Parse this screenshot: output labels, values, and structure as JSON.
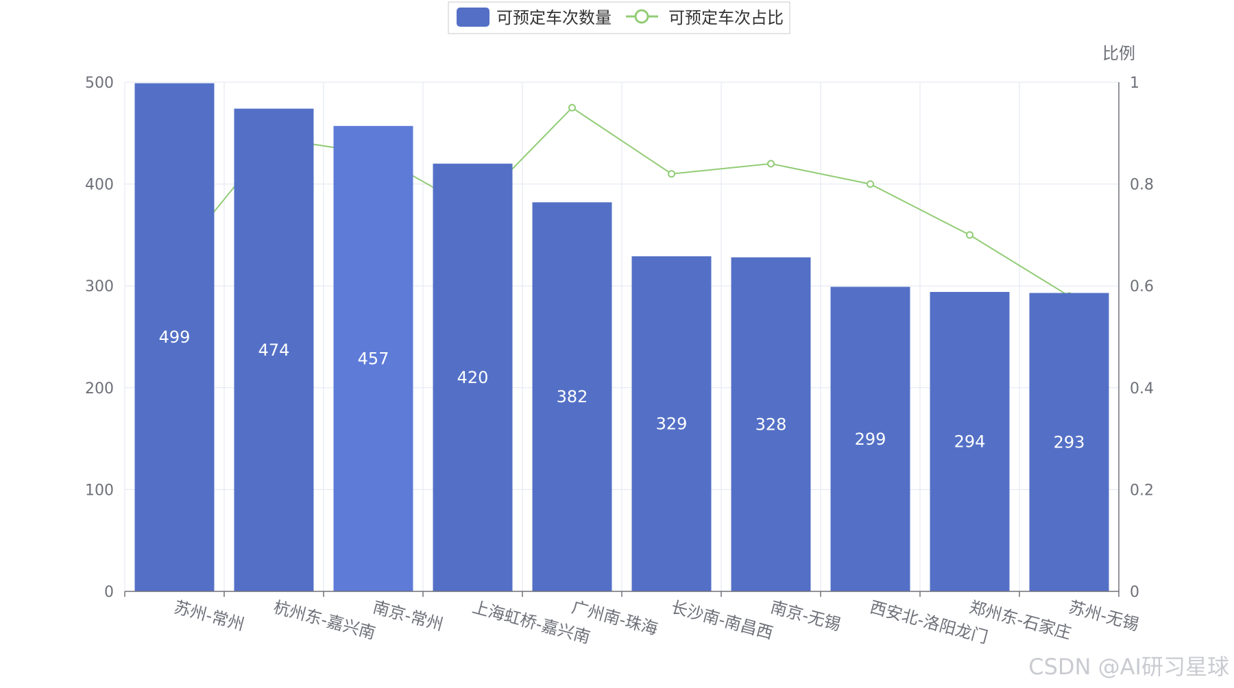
{
  "watermark": "CSDN @AI研习星球",
  "chart_data": {
    "type": "bar",
    "categories": [
      "苏州-常州",
      "杭州东-嘉兴南",
      "南京-常州",
      "上海虹桥-嘉兴南",
      "广州南-珠海",
      "长沙南-南昌西",
      "南京-无锡",
      "西安北-洛阳龙门",
      "郑州东-石家庄",
      "苏州-无锡"
    ],
    "series": [
      {
        "name": "可预定车次数量",
        "type": "bar",
        "axis": "left",
        "color": "#5470c6",
        "values": [
          499,
          474,
          457,
          420,
          382,
          329,
          328,
          299,
          294,
          293
        ]
      },
      {
        "name": "可预定车次占比",
        "type": "line",
        "axis": "right",
        "color": "#91cc75",
        "values": [
          0.65,
          0.89,
          0.86,
          0.75,
          0.95,
          0.82,
          0.84,
          0.8,
          0.7,
          0.58
        ]
      }
    ],
    "y_left": {
      "min": 0,
      "max": 500,
      "ticks": [
        "0",
        "100",
        "200",
        "300",
        "400",
        "500"
      ]
    },
    "y_right": {
      "name": "比例",
      "min": 0,
      "max": 1,
      "ticks": [
        "0",
        "0.2",
        "0.4",
        "0.6",
        "0.8",
        "1"
      ]
    },
    "grid": true,
    "legend_position": "top-center",
    "highlighted_bar_index": 2,
    "highlight_color": "#5e7bd8"
  }
}
